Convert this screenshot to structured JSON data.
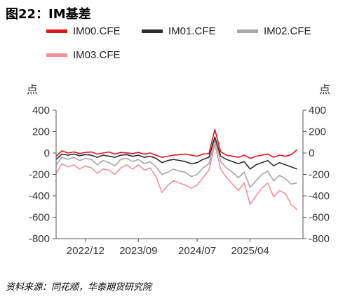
{
  "figure": {
    "title": "图22：IM基差",
    "source": "资料来源：同花顺，华泰期货研究院"
  },
  "chart_data": {
    "type": "line",
    "yunit_left": "点",
    "yunit_right": "点",
    "ylim": [
      -800,
      400
    ],
    "yticks_left": [
      "400",
      "200",
      "0",
      "-200",
      "-400",
      "-600",
      "-800"
    ],
    "yticks_right": [
      "400",
      "200",
      "0",
      "-200",
      "-400",
      "-600",
      "-800"
    ],
    "xlim": [
      "2022-07",
      "2026-01"
    ],
    "xticks": [
      {
        "date": "2022-12",
        "label": "2022/12"
      },
      {
        "date": "2023-09",
        "label": "2023/09"
      },
      {
        "date": "2024-07",
        "label": "2024/07"
      },
      {
        "date": "2025-04",
        "label": "2025/04"
      }
    ],
    "legend_position": "top",
    "series": [
      {
        "name": "IM00.CFE",
        "color": "#e0141e",
        "points": [
          [
            "2022-07",
            -30
          ],
          [
            "2022-08",
            20
          ],
          [
            "2022-09",
            0
          ],
          [
            "2022-10",
            10
          ],
          [
            "2022-11",
            -5
          ],
          [
            "2022-12",
            5
          ],
          [
            "2023-01",
            10
          ],
          [
            "2023-02",
            -10
          ],
          [
            "2023-03",
            0
          ],
          [
            "2023-04",
            10
          ],
          [
            "2023-05",
            -10
          ],
          [
            "2023-06",
            5
          ],
          [
            "2023-07",
            0
          ],
          [
            "2023-08",
            -5
          ],
          [
            "2023-09",
            5
          ],
          [
            "2023-10",
            -10
          ],
          [
            "2023-11",
            0
          ],
          [
            "2023-12",
            -20
          ],
          [
            "2024-01",
            -40
          ],
          [
            "2024-02",
            -30
          ],
          [
            "2024-03",
            -20
          ],
          [
            "2024-04",
            -15
          ],
          [
            "2024-05",
            -10
          ],
          [
            "2024-06",
            -20
          ],
          [
            "2024-07",
            -30
          ],
          [
            "2024-08",
            -10
          ],
          [
            "2024-09",
            -5
          ],
          [
            "2024-10",
            220
          ],
          [
            "2024-11",
            10
          ],
          [
            "2024-12",
            -20
          ],
          [
            "2025-01",
            -30
          ],
          [
            "2025-02",
            -40
          ],
          [
            "2025-03",
            -20
          ],
          [
            "2025-04",
            -50
          ],
          [
            "2025-05",
            -30
          ],
          [
            "2025-06",
            -20
          ],
          [
            "2025-07",
            -10
          ],
          [
            "2025-08",
            -40
          ],
          [
            "2025-09",
            -20
          ],
          [
            "2025-10",
            -30
          ],
          [
            "2025-11",
            -15
          ],
          [
            "2025-12",
            30
          ]
        ]
      },
      {
        "name": "IM01.CFE",
        "color": "#2d2d2d",
        "points": [
          [
            "2022-07",
            -60
          ],
          [
            "2022-08",
            -10
          ],
          [
            "2022-09",
            -20
          ],
          [
            "2022-10",
            -10
          ],
          [
            "2022-11",
            -25
          ],
          [
            "2022-12",
            -15
          ],
          [
            "2023-01",
            -20
          ],
          [
            "2023-02",
            -40
          ],
          [
            "2023-03",
            -20
          ],
          [
            "2023-04",
            -30
          ],
          [
            "2023-05",
            -40
          ],
          [
            "2023-06",
            -20
          ],
          [
            "2023-07",
            -15
          ],
          [
            "2023-08",
            -30
          ],
          [
            "2023-09",
            -20
          ],
          [
            "2023-10",
            -40
          ],
          [
            "2023-11",
            -30
          ],
          [
            "2023-12",
            -50
          ],
          [
            "2024-01",
            -90
          ],
          [
            "2024-02",
            -70
          ],
          [
            "2024-03",
            -60
          ],
          [
            "2024-04",
            -70
          ],
          [
            "2024-05",
            -80
          ],
          [
            "2024-06",
            -100
          ],
          [
            "2024-07",
            -90
          ],
          [
            "2024-08",
            -60
          ],
          [
            "2024-09",
            -40
          ],
          [
            "2024-10",
            150
          ],
          [
            "2024-11",
            -30
          ],
          [
            "2024-12",
            -60
          ],
          [
            "2025-01",
            -80
          ],
          [
            "2025-02",
            -100
          ],
          [
            "2025-03",
            -80
          ],
          [
            "2025-04",
            -150
          ],
          [
            "2025-05",
            -110
          ],
          [
            "2025-06",
            -90
          ],
          [
            "2025-07",
            -70
          ],
          [
            "2025-08",
            -120
          ],
          [
            "2025-09",
            -90
          ],
          [
            "2025-10",
            -110
          ],
          [
            "2025-11",
            -130
          ],
          [
            "2025-12",
            -150
          ]
        ]
      },
      {
        "name": "IM02.CFE",
        "color": "#a6a6a6",
        "points": [
          [
            "2022-07",
            -110
          ],
          [
            "2022-08",
            -40
          ],
          [
            "2022-09",
            -60
          ],
          [
            "2022-10",
            -40
          ],
          [
            "2022-11",
            -70
          ],
          [
            "2022-12",
            -50
          ],
          [
            "2023-01",
            -60
          ],
          [
            "2023-02",
            -110
          ],
          [
            "2023-03",
            -70
          ],
          [
            "2023-04",
            -90
          ],
          [
            "2023-05",
            -120
          ],
          [
            "2023-06",
            -60
          ],
          [
            "2023-07",
            -50
          ],
          [
            "2023-08",
            -80
          ],
          [
            "2023-09",
            -60
          ],
          [
            "2023-10",
            -100
          ],
          [
            "2023-11",
            -80
          ],
          [
            "2023-12",
            -130
          ],
          [
            "2024-01",
            -200
          ],
          [
            "2024-02",
            -180
          ],
          [
            "2024-03",
            -150
          ],
          [
            "2024-04",
            -170
          ],
          [
            "2024-05",
            -180
          ],
          [
            "2024-06",
            -220
          ],
          [
            "2024-07",
            -200
          ],
          [
            "2024-08",
            -140
          ],
          [
            "2024-09",
            -100
          ],
          [
            "2024-10",
            120
          ],
          [
            "2024-11",
            -80
          ],
          [
            "2024-12",
            -140
          ],
          [
            "2025-01",
            -180
          ],
          [
            "2025-02",
            -230
          ],
          [
            "2025-03",
            -180
          ],
          [
            "2025-04",
            -320
          ],
          [
            "2025-05",
            -260
          ],
          [
            "2025-06",
            -200
          ],
          [
            "2025-07",
            -170
          ],
          [
            "2025-08",
            -260
          ],
          [
            "2025-09",
            -210
          ],
          [
            "2025-10",
            -240
          ],
          [
            "2025-11",
            -290
          ],
          [
            "2025-12",
            -280
          ]
        ]
      },
      {
        "name": "IM03.CFE",
        "color": "#f0909a",
        "points": [
          [
            "2022-07",
            -190
          ],
          [
            "2022-08",
            -100
          ],
          [
            "2022-09",
            -130
          ],
          [
            "2022-10",
            -110
          ],
          [
            "2022-11",
            -150
          ],
          [
            "2022-12",
            -120
          ],
          [
            "2023-01",
            -140
          ],
          [
            "2023-02",
            -190
          ],
          [
            "2023-03",
            -150
          ],
          [
            "2023-04",
            -160
          ],
          [
            "2023-05",
            -200
          ],
          [
            "2023-06",
            -140
          ],
          [
            "2023-07",
            -110
          ],
          [
            "2023-08",
            -150
          ],
          [
            "2023-09",
            -110
          ],
          [
            "2023-10",
            -160
          ],
          [
            "2023-11",
            -140
          ],
          [
            "2023-12",
            -220
          ],
          [
            "2024-01",
            -370
          ],
          [
            "2024-02",
            -300
          ],
          [
            "2024-03",
            -260
          ],
          [
            "2024-04",
            -280
          ],
          [
            "2024-05",
            -300
          ],
          [
            "2024-06",
            -330
          ],
          [
            "2024-07",
            -300
          ],
          [
            "2024-08",
            -230
          ],
          [
            "2024-09",
            -160
          ],
          [
            "2024-10",
            80
          ],
          [
            "2024-11",
            -150
          ],
          [
            "2024-12",
            -230
          ],
          [
            "2025-01",
            -290
          ],
          [
            "2025-02",
            -350
          ],
          [
            "2025-03",
            -280
          ],
          [
            "2025-04",
            -480
          ],
          [
            "2025-05",
            -400
          ],
          [
            "2025-06",
            -330
          ],
          [
            "2025-07",
            -280
          ],
          [
            "2025-08",
            -410
          ],
          [
            "2025-09",
            -350
          ],
          [
            "2025-10",
            -380
          ],
          [
            "2025-11",
            -480
          ],
          [
            "2025-12",
            -530
          ]
        ]
      }
    ]
  }
}
